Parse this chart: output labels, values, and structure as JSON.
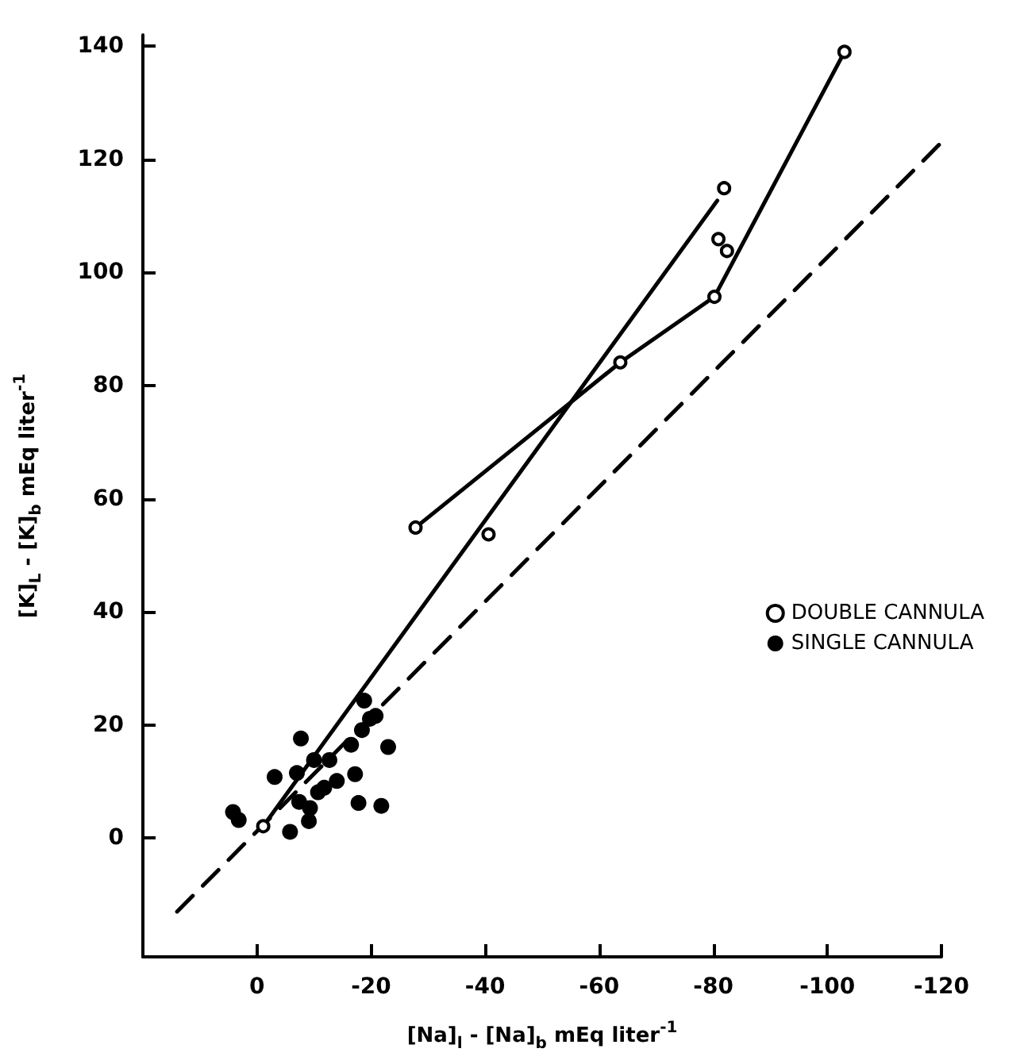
{
  "chart_data": {
    "type": "scatter",
    "xlabel": "[Na]$_{l}$ - [Na]$_{b}$ mEq liter$^{-1}$",
    "ylabel": "[K]$_{L}$ - [K]$_{b}$ mEq liter$^{-1}$",
    "xlim": [
      20,
      -120
    ],
    "xticks": [
      0,
      -20,
      -40,
      -60,
      -80,
      -100,
      -120
    ],
    "ylim": [
      -21,
      142
    ],
    "yticks": [
      0,
      20,
      40,
      60,
      80,
      100,
      120,
      140
    ],
    "grid": false,
    "legend": "right",
    "series": [
      {
        "name": "DOUBLE CANNULA",
        "marker": "circle",
        "color": "#000000",
        "x": [
          -1.1,
          -27.8,
          -40.6,
          -63.7,
          -80.2,
          -80.9,
          -82.4,
          -81.9,
          -103
        ],
        "values": [
          2.1,
          54.9,
          53.7,
          84.1,
          95.7,
          105.9,
          103.8,
          114.9,
          139
        ]
      },
      {
        "name": "SINGLE CANNULA",
        "marker": "circle",
        "color": "#000000",
        "x": [
          4.2,
          3.2,
          -3.1,
          -5.8,
          -7.0,
          -7.7,
          -7.4,
          -9.3,
          -9.1,
          -10.0,
          -10.7,
          -11.8,
          -12.7,
          -14.0,
          -16.5,
          -17.2,
          -17.8,
          -18.4,
          -18.8,
          -19.8,
          -20.8,
          -21.8,
          -23.0
        ],
        "values": [
          4.6,
          3.2,
          10.8,
          1.1,
          11.5,
          17.6,
          6.4,
          5.3,
          3.0,
          13.8,
          8.1,
          8.9,
          13.8,
          10.1,
          16.5,
          11.3,
          6.2,
          19.1,
          24.3,
          21.1,
          21.6,
          5.7,
          16.1
        ]
      },
      {
        "type": "line",
        "color": "#000000",
        "line_style": "solid",
        "x": [
          -1.1,
          -80.7
        ],
        "values": [
          2.1,
          112.7
        ]
      },
      {
        "type": "line",
        "color": "#000000",
        "line_style": "solid",
        "x": [
          -27.8,
          -63.7,
          -80.2,
          -103
        ],
        "values": [
          54.9,
          84.1,
          95.7,
          139
        ]
      },
      {
        "type": "line",
        "color": "#000000",
        "line_style": "dashed",
        "x": [
          14,
          -120
        ],
        "values": [
          -13,
          123
        ]
      }
    ]
  }
}
